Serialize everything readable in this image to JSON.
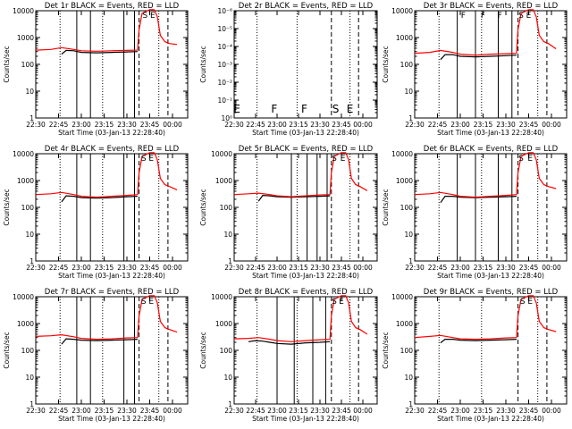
{
  "chart_data": [
    {
      "type": "line",
      "title": "Det 1r BLACK = Events, RED = LLD",
      "xlabel": "Start Time (03-Jan-13 22:28:40)",
      "ylabel": "Counts/sec",
      "yscale": "log",
      "ylim": [
        1,
        10000
      ],
      "yticks": [
        "1",
        "10",
        "100",
        "1000",
        "10000"
      ],
      "xlim": [
        "22:30",
        "00:10"
      ],
      "xticks": [
        "22:30",
        "22:45",
        "23:00",
        "23:15",
        "23:30",
        "23:45",
        "00:00"
      ],
      "solid_vlines": [
        "22:57",
        "23:06",
        "23:28",
        "23:35"
      ],
      "dashed_vlines": [
        "23:38",
        "23:57"
      ],
      "dotted_vlines": [
        "22:46",
        "23:14",
        "23:51"
      ],
      "flags": [
        {
          "x": "23:42",
          "label": "S"
        },
        {
          "x": "23:47",
          "label": "E"
        }
      ],
      "series": [
        {
          "name": "Events",
          "color": "#000000",
          "x": [
            "22:47",
            "22:50",
            "22:55",
            "23:00",
            "23:10",
            "23:20",
            "23:30",
            "23:37"
          ],
          "values": [
            240,
            330,
            320,
            280,
            270,
            280,
            290,
            300
          ]
        },
        {
          "name": "LLD",
          "color": "#ff0000",
          "x": [
            "22:30",
            "22:40",
            "22:47",
            "22:55",
            "23:00",
            "23:10",
            "23:20",
            "23:30",
            "23:37",
            "23:38",
            "23:40",
            "23:45",
            "23:48",
            "23:50",
            "23:52",
            "23:55",
            "23:58",
            "00:03"
          ],
          "values": [
            340,
            360,
            420,
            360,
            320,
            310,
            320,
            330,
            340,
            2000,
            8000,
            11000,
            11000,
            6000,
            1200,
            700,
            600,
            550
          ]
        }
      ]
    },
    {
      "type": "line",
      "title": "Det 2r BLACK = Events, RED = LLD",
      "xlabel": "Start Time (03-Jan-13 22:28:40)",
      "ylabel": "Counts/sec",
      "yscale": "log",
      "ylim": [
        1,
        1e-06
      ],
      "yticks": [
        "10⁰",
        "10⁻¹",
        "10⁻²",
        "10⁻³",
        "10⁻⁴",
        "10⁻⁵",
        "10⁻⁶"
      ],
      "xlim": [
        "22:30",
        "00:10"
      ],
      "xticks": [
        "22:30",
        "22:45",
        "23:00",
        "23:15",
        "23:30",
        "23:45",
        "00:00"
      ],
      "solid_vlines": [],
      "dashed_vlines": [
        "23:38",
        "23:57"
      ],
      "dotted_vlines": [
        "22:46",
        "23:14",
        "23:51"
      ],
      "flags": [
        {
          "x": "22:32",
          "label": "E"
        },
        {
          "x": "22:58",
          "label": "F"
        },
        {
          "x": "23:19",
          "label": "F"
        },
        {
          "x": "23:41",
          "label": "S"
        },
        {
          "x": "23:51",
          "label": "E"
        }
      ],
      "series": []
    },
    {
      "type": "line",
      "title": "Det 3r BLACK = Events, RED = LLD",
      "xlabel": "Start Time (03-Jan-13 22:28:40)",
      "ylabel": "Counts/sec",
      "yscale": "log",
      "ylim": [
        1,
        10000
      ],
      "yticks": [
        "1",
        "10",
        "100",
        "1000",
        "10000"
      ],
      "xlim": [
        "22:30",
        "00:10"
      ],
      "xticks": [
        "22:30",
        "22:45",
        "23:00",
        "23:15",
        "23:30",
        "23:45",
        "00:00"
      ],
      "solid_vlines": [
        "22:58",
        "23:10",
        "23:25",
        "23:34"
      ],
      "dashed_vlines": [
        "23:38",
        "23:57"
      ],
      "dotted_vlines": [
        "22:46",
        "23:14",
        "23:51"
      ],
      "flags": [
        {
          "x": "23:02",
          "label": "F"
        },
        {
          "x": "23:15",
          "label": "F"
        },
        {
          "x": "23:26",
          "label": "F"
        },
        {
          "x": "23:40",
          "label": "S"
        },
        {
          "x": "23:45",
          "label": "E"
        }
      ],
      "series": [
        {
          "name": "Events",
          "color": "#000000",
          "x": [
            "22:47",
            "22:50",
            "22:55",
            "23:00",
            "23:10",
            "23:20",
            "23:30",
            "23:37"
          ],
          "values": [
            150,
            230,
            230,
            200,
            190,
            200,
            210,
            220
          ]
        },
        {
          "name": "LLD",
          "color": "#ff0000",
          "x": [
            "22:30",
            "22:40",
            "22:47",
            "22:55",
            "23:00",
            "23:10",
            "23:20",
            "23:30",
            "23:37",
            "23:38",
            "23:40",
            "23:45",
            "23:48",
            "23:50",
            "23:52",
            "23:55",
            "23:58",
            "00:03"
          ],
          "values": [
            260,
            280,
            330,
            280,
            240,
            220,
            240,
            250,
            260,
            2000,
            8000,
            11000,
            11000,
            6000,
            1200,
            700,
            600,
            380
          ]
        }
      ]
    },
    {
      "type": "line",
      "title": "Det 4r BLACK = Events, RED = LLD",
      "xlabel": "Start Time (03-Jan-13 22:28:40)",
      "ylabel": "Counts/sec",
      "yscale": "log",
      "ylim": [
        1,
        10000
      ],
      "yticks": [
        "1",
        "10",
        "100",
        "1000",
        "10000"
      ],
      "xlim": [
        "22:30",
        "00:10"
      ],
      "xticks": [
        "22:30",
        "22:45",
        "23:00",
        "23:15",
        "23:30",
        "23:45",
        "00:00"
      ],
      "solid_vlines": [
        "22:57",
        "23:06",
        "23:28",
        "23:35"
      ],
      "dashed_vlines": [
        "23:38",
        "23:57"
      ],
      "dotted_vlines": [
        "22:46",
        "23:14",
        "23:51"
      ],
      "flags": [
        {
          "x": "23:41",
          "label": "S"
        },
        {
          "x": "23:46",
          "label": "E"
        }
      ],
      "series": [
        {
          "name": "Events",
          "color": "#000000",
          "x": [
            "22:47",
            "22:50",
            "22:55",
            "23:00",
            "23:10",
            "23:20",
            "23:30",
            "23:37"
          ],
          "values": [
            160,
            270,
            260,
            230,
            220,
            230,
            250,
            260
          ]
        },
        {
          "name": "LLD",
          "color": "#ff0000",
          "x": [
            "22:30",
            "22:40",
            "22:47",
            "22:55",
            "23:00",
            "23:10",
            "23:20",
            "23:30",
            "23:37",
            "23:38",
            "23:40",
            "23:45",
            "23:48",
            "23:50",
            "23:52",
            "23:55",
            "23:58",
            "00:03"
          ],
          "values": [
            300,
            320,
            360,
            300,
            260,
            240,
            260,
            280,
            300,
            2000,
            8000,
            11000,
            11000,
            6000,
            1200,
            700,
            600,
            450
          ]
        }
      ]
    },
    {
      "type": "line",
      "title": "Det 5r BLACK = Events, RED = LLD",
      "xlabel": "Start Time (03-Jan-13 22:28:40)",
      "ylabel": "Counts/sec",
      "yscale": "log",
      "ylim": [
        1,
        10000
      ],
      "yticks": [
        "1",
        "10",
        "100",
        "1000",
        "10000"
      ],
      "xlim": [
        "22:30",
        "00:10"
      ],
      "xticks": [
        "22:30",
        "22:45",
        "23:00",
        "23:15",
        "23:30",
        "23:45",
        "00:00"
      ],
      "solid_vlines": [
        "23:10",
        "23:21",
        "23:28",
        "23:35"
      ],
      "dashed_vlines": [
        "23:38",
        "23:57"
      ],
      "dotted_vlines": [
        "22:46",
        "23:14",
        "23:51"
      ],
      "flags": [
        {
          "x": "23:40",
          "label": "S"
        },
        {
          "x": "23:46",
          "label": "E"
        }
      ],
      "series": [
        {
          "name": "Events",
          "color": "#000000",
          "x": [
            "22:47",
            "22:50",
            "22:55",
            "23:00",
            "23:10",
            "23:20",
            "23:30",
            "23:37"
          ],
          "values": [
            170,
            280,
            270,
            250,
            240,
            250,
            260,
            270
          ]
        },
        {
          "name": "LLD",
          "color": "#ff0000",
          "x": [
            "22:30",
            "22:40",
            "22:47",
            "22:55",
            "23:00",
            "23:10",
            "23:20",
            "23:30",
            "23:37",
            "23:38",
            "23:40",
            "23:45",
            "23:48",
            "23:50",
            "23:52",
            "23:55",
            "23:58",
            "00:03"
          ],
          "values": [
            300,
            320,
            340,
            300,
            270,
            250,
            270,
            290,
            300,
            2000,
            8000,
            11000,
            11000,
            6000,
            1200,
            700,
            600,
            420
          ]
        }
      ]
    },
    {
      "type": "line",
      "title": "Det 6r BLACK = Events, RED = LLD",
      "xlabel": "Start Time (03-Jan-13 22:28:40)",
      "ylabel": "Counts/sec",
      "yscale": "log",
      "ylim": [
        1,
        10000
      ],
      "yticks": [
        "1",
        "10",
        "100",
        "1000",
        "10000"
      ],
      "xlim": [
        "22:30",
        "00:10"
      ],
      "xticks": [
        "22:30",
        "22:45",
        "23:00",
        "23:15",
        "23:30",
        "23:45",
        "00:00"
      ],
      "solid_vlines": [
        "22:58",
        "23:10",
        "23:25",
        "23:34"
      ],
      "dashed_vlines": [
        "23:38",
        "23:57"
      ],
      "dotted_vlines": [
        "22:46",
        "23:14",
        "23:51"
      ],
      "flags": [
        {
          "x": "23:40",
          "label": "S"
        },
        {
          "x": "23:46",
          "label": "E"
        }
      ],
      "series": [
        {
          "name": "Events",
          "color": "#000000",
          "x": [
            "22:47",
            "22:50",
            "22:55",
            "23:00",
            "23:10",
            "23:20",
            "23:30",
            "23:37"
          ],
          "values": [
            150,
            260,
            260,
            240,
            230,
            240,
            250,
            260
          ]
        },
        {
          "name": "LLD",
          "color": "#ff0000",
          "x": [
            "22:30",
            "22:40",
            "22:47",
            "22:55",
            "23:00",
            "23:10",
            "23:20",
            "23:30",
            "23:37",
            "23:38",
            "23:40",
            "23:45",
            "23:48",
            "23:50",
            "23:52",
            "23:55",
            "23:58",
            "00:03"
          ],
          "values": [
            300,
            320,
            360,
            300,
            260,
            240,
            260,
            280,
            300,
            2000,
            8000,
            11000,
            11000,
            6000,
            1200,
            700,
            600,
            500
          ]
        }
      ]
    },
    {
      "type": "line",
      "title": "Det 7r BLACK = Events, RED = LLD",
      "xlabel": "Start Time (03-Jan-13 22:28:40)",
      "ylabel": "Counts/sec",
      "yscale": "log",
      "ylim": [
        1,
        10000
      ],
      "yticks": [
        "1",
        "10",
        "100",
        "1000",
        "10000"
      ],
      "xlim": [
        "22:30",
        "00:10"
      ],
      "xticks": [
        "22:30",
        "22:45",
        "23:00",
        "23:15",
        "23:30",
        "23:45",
        "00:00"
      ],
      "solid_vlines": [
        "22:57",
        "23:06",
        "23:28",
        "23:35"
      ],
      "dashed_vlines": [
        "23:38",
        "23:57"
      ],
      "dotted_vlines": [
        "22:46",
        "23:14",
        "23:51"
      ],
      "flags": [
        {
          "x": "23:41",
          "label": "S"
        },
        {
          "x": "23:46",
          "label": "E"
        }
      ],
      "series": [
        {
          "name": "Events",
          "color": "#000000",
          "x": [
            "22:47",
            "22:50",
            "22:55",
            "23:00",
            "23:10",
            "23:20",
            "23:30",
            "23:37"
          ],
          "values": [
            170,
            270,
            260,
            240,
            230,
            240,
            250,
            260
          ]
        },
        {
          "name": "LLD",
          "color": "#ff0000",
          "x": [
            "22:30",
            "22:40",
            "22:47",
            "22:55",
            "23:00",
            "23:10",
            "23:20",
            "23:30",
            "23:37",
            "23:38",
            "23:40",
            "23:45",
            "23:48",
            "23:50",
            "23:52",
            "23:55",
            "23:58",
            "00:03"
          ],
          "values": [
            330,
            350,
            380,
            320,
            280,
            260,
            270,
            290,
            300,
            2000,
            8000,
            11000,
            11000,
            6000,
            1200,
            700,
            600,
            480
          ]
        }
      ]
    },
    {
      "type": "line",
      "title": "Det 8r BLACK = Events, RED = LLD",
      "xlabel": "Start Time (03-Jan-13 22:28:40)",
      "ylabel": "Counts/sec",
      "yscale": "log",
      "ylim": [
        1,
        10000
      ],
      "yticks": [
        "1",
        "10",
        "100",
        "1000",
        "10000"
      ],
      "xlim": [
        "22:30",
        "00:10"
      ],
      "xticks": [
        "22:30",
        "22:45",
        "23:00",
        "23:15",
        "23:30",
        "23:45",
        "00:00"
      ],
      "solid_vlines": [
        "23:00",
        "23:12",
        "23:25",
        "23:34"
      ],
      "dashed_vlines": [
        "23:38",
        "23:57"
      ],
      "dotted_vlines": [
        "22:46",
        "23:14",
        "23:51"
      ],
      "flags": [
        {
          "x": "23:40",
          "label": "S"
        },
        {
          "x": "23:45",
          "label": "E"
        }
      ],
      "series": [
        {
          "name": "Events",
          "color": "#000000",
          "x": [
            "22:40",
            "22:45",
            "22:50",
            "22:55",
            "23:00",
            "23:10",
            "23:20",
            "23:30",
            "23:37"
          ],
          "values": [
            210,
            230,
            220,
            200,
            180,
            170,
            190,
            200,
            210
          ]
        },
        {
          "name": "LLD",
          "color": "#ff0000",
          "x": [
            "22:30",
            "22:40",
            "22:47",
            "22:55",
            "23:00",
            "23:10",
            "23:20",
            "23:30",
            "23:37",
            "23:38",
            "23:40",
            "23:45",
            "23:48",
            "23:50",
            "23:52",
            "23:55",
            "23:58",
            "00:03"
          ],
          "values": [
            270,
            280,
            300,
            260,
            230,
            210,
            230,
            250,
            260,
            2000,
            8000,
            11000,
            11000,
            6000,
            1200,
            700,
            600,
            400
          ]
        }
      ]
    },
    {
      "type": "line",
      "title": "Det 9r BLACK = Events, RED = LLD",
      "xlabel": "Start Time (03-Jan-13 22:28:40)",
      "ylabel": "Counts/sec",
      "yscale": "log",
      "ylim": [
        1,
        10000
      ],
      "yticks": [
        "1",
        "10",
        "100",
        "1000",
        "10000"
      ],
      "xlim": [
        "22:30",
        "00:10"
      ],
      "xticks": [
        "22:30",
        "22:45",
        "23:00",
        "23:15",
        "23:30",
        "23:45",
        "00:00"
      ],
      "solid_vlines": [],
      "dashed_vlines": [
        "23:38",
        "23:57"
      ],
      "dotted_vlines": [
        "22:46",
        "23:14",
        "23:51"
      ],
      "flags": [
        {
          "x": "23:41",
          "label": "S"
        },
        {
          "x": "23:46",
          "label": "E"
        }
      ],
      "series": [
        {
          "name": "Events",
          "color": "#000000",
          "x": [
            "22:47",
            "22:50",
            "22:55",
            "23:00",
            "23:10",
            "23:20",
            "23:30",
            "23:37"
          ],
          "values": [
            190,
            260,
            260,
            240,
            230,
            240,
            250,
            260
          ]
        },
        {
          "name": "LLD",
          "color": "#ff0000",
          "x": [
            "22:30",
            "22:40",
            "22:47",
            "22:55",
            "23:00",
            "23:10",
            "23:20",
            "23:30",
            "23:37",
            "23:38",
            "23:40",
            "23:45",
            "23:48",
            "23:50",
            "23:52",
            "23:55",
            "23:58",
            "00:03"
          ],
          "values": [
            300,
            330,
            360,
            300,
            270,
            260,
            270,
            290,
            300,
            2000,
            8000,
            11000,
            11000,
            6000,
            1200,
            700,
            600,
            500
          ]
        }
      ]
    }
  ]
}
